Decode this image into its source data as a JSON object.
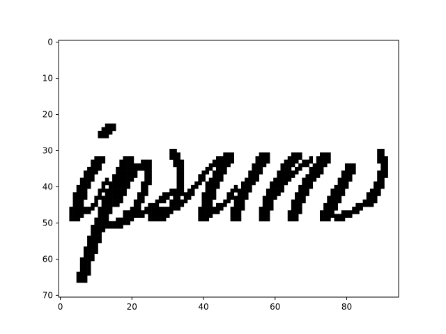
{
  "colors": {
    "background": "#ffffff",
    "ink": "#000000",
    "axes": "#000000"
  },
  "chart_data": {
    "type": "heatmap",
    "image": "binary handwritten word rendered as black pixels on white",
    "xlim": [
      -0.5,
      94.5
    ],
    "ylim": [
      70.5,
      -0.5
    ],
    "grid": false,
    "x_ticks": [
      0,
      20,
      40,
      60,
      80
    ],
    "y_ticks": [
      0,
      10,
      20,
      30,
      40,
      50,
      60,
      70
    ],
    "x_tick_labels": [
      "0",
      "20",
      "40",
      "60",
      "80"
    ],
    "y_tick_labels": [
      "0",
      "10",
      "20",
      "30",
      "40",
      "50",
      "60",
      "70"
    ],
    "strokes": [
      {
        "name": "i-dot",
        "w": 3,
        "pts": [
          [
            12,
            25
          ],
          [
            14,
            23
          ]
        ]
      },
      {
        "name": "i-stem",
        "w": 3,
        "pts": [
          [
            4,
            48
          ],
          [
            6,
            40
          ],
          [
            9,
            35
          ],
          [
            11,
            32
          ]
        ]
      },
      {
        "name": "i-exit",
        "w": 1,
        "pts": [
          [
            4,
            48
          ],
          [
            9,
            45
          ],
          [
            13,
            38
          ]
        ]
      },
      {
        "name": "p-descender",
        "w": 3,
        "pts": [
          [
            6,
            65
          ],
          [
            8,
            58
          ],
          [
            11,
            50
          ],
          [
            14,
            42
          ],
          [
            17,
            36
          ],
          [
            19,
            32
          ]
        ]
      },
      {
        "name": "p-bowl",
        "w": 2,
        "pts": [
          [
            15,
            44
          ],
          [
            18,
            38
          ],
          [
            21,
            34
          ],
          [
            24,
            33
          ],
          [
            24,
            37
          ],
          [
            22,
            43
          ],
          [
            19,
            48
          ],
          [
            15,
            50
          ],
          [
            12,
            50
          ]
        ]
      },
      {
        "name": "p-exit",
        "w": 1,
        "pts": [
          [
            18,
            47
          ],
          [
            23,
            47
          ],
          [
            27,
            44
          ],
          [
            31,
            41
          ]
        ]
      },
      {
        "name": "s-body",
        "w": 2,
        "pts": [
          [
            31,
            30
          ],
          [
            33,
            34
          ],
          [
            33,
            40
          ],
          [
            31,
            45
          ],
          [
            28,
            48
          ],
          [
            25,
            48
          ]
        ]
      },
      {
        "name": "s-base",
        "w": 1,
        "pts": [
          [
            25,
            47
          ],
          [
            28,
            46
          ],
          [
            30,
            46
          ]
        ]
      },
      {
        "name": "s-exit",
        "w": 1,
        "pts": [
          [
            30,
            46
          ],
          [
            34,
            44
          ],
          [
            38,
            39
          ],
          [
            41,
            35
          ],
          [
            44,
            32
          ]
        ]
      },
      {
        "name": "u-first",
        "w": 3,
        "pts": [
          [
            40,
            48
          ],
          [
            41,
            43
          ],
          [
            43,
            38
          ],
          [
            46,
            33
          ],
          [
            47,
            31
          ]
        ]
      },
      {
        "name": "u-link",
        "w": 1,
        "pts": [
          [
            42,
            47
          ],
          [
            46,
            44
          ],
          [
            49,
            40
          ]
        ]
      },
      {
        "name": "u-second",
        "w": 3,
        "pts": [
          [
            49,
            48
          ],
          [
            50,
            43
          ],
          [
            53,
            38
          ],
          [
            56,
            33
          ],
          [
            57,
            31
          ]
        ]
      },
      {
        "name": "m-first",
        "w": 3,
        "pts": [
          [
            57,
            48
          ],
          [
            58,
            43
          ],
          [
            61,
            38
          ],
          [
            64,
            33
          ],
          [
            66,
            31
          ]
        ]
      },
      {
        "name": "m-link",
        "w": 1,
        "pts": [
          [
            56,
            46
          ],
          [
            60,
            42
          ],
          [
            63,
            38
          ],
          [
            67,
            34
          ],
          [
            70,
            32
          ]
        ]
      },
      {
        "name": "m-second",
        "w": 3,
        "pts": [
          [
            65,
            48
          ],
          [
            67,
            42
          ],
          [
            70,
            37
          ],
          [
            73,
            33
          ],
          [
            74,
            31
          ]
        ]
      },
      {
        "name": "m-third",
        "w": 3,
        "pts": [
          [
            74,
            48
          ],
          [
            76,
            44
          ],
          [
            78,
            40
          ],
          [
            80,
            37
          ],
          [
            81,
            34
          ]
        ]
      },
      {
        "name": "m-exit",
        "w": 1,
        "pts": [
          [
            77,
            48
          ],
          [
            81,
            47
          ],
          [
            85,
            44
          ],
          [
            88,
            40
          ]
        ]
      },
      {
        "name": "final-hook",
        "w": 2,
        "pts": [
          [
            86,
            44
          ],
          [
            89,
            38
          ],
          [
            90,
            34
          ],
          [
            89,
            30
          ]
        ]
      }
    ]
  }
}
